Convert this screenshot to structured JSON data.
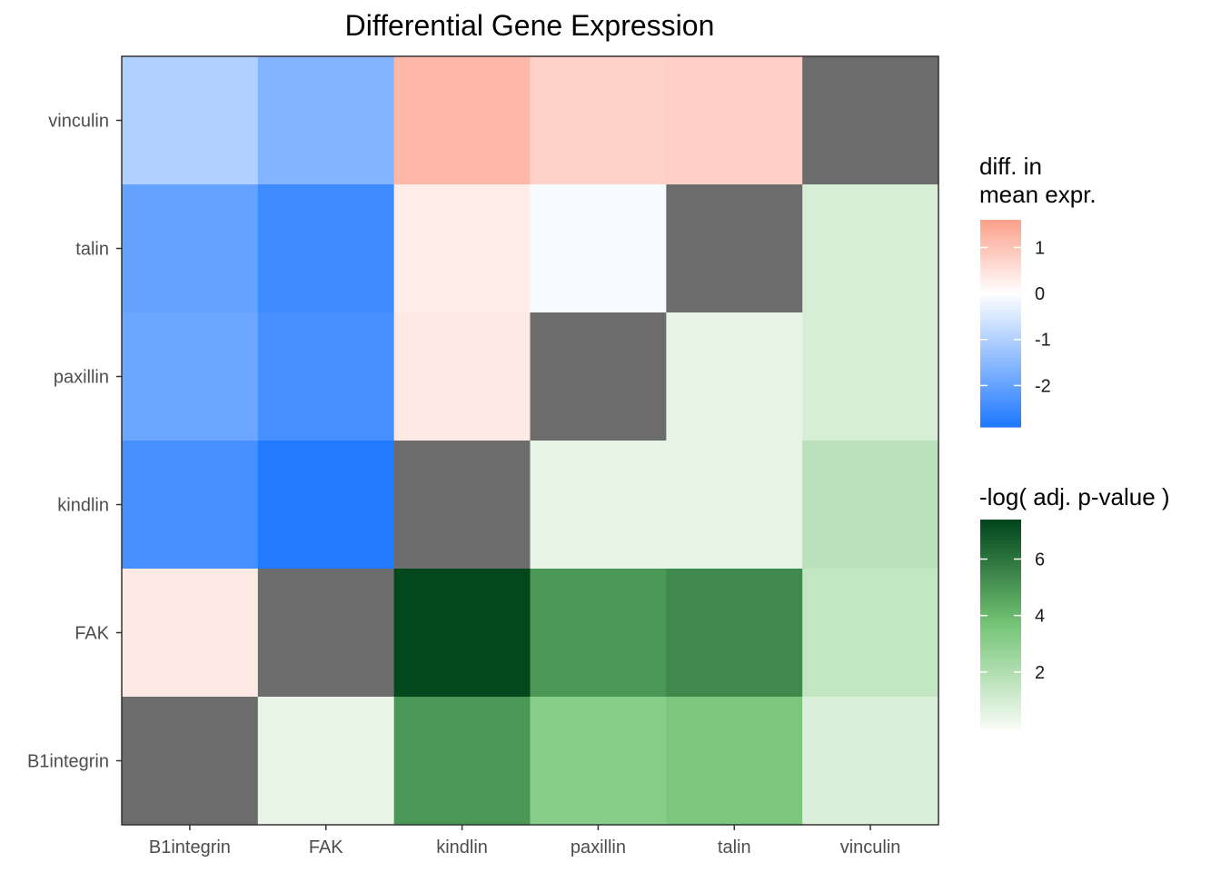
{
  "chart_data": {
    "type": "heatmap",
    "title": "Differential Gene Expression",
    "xlabel": "",
    "ylabel": "",
    "x_categories": [
      "B1integrin",
      "FAK",
      "kindlin",
      "paxillin",
      "talin",
      "vinculin"
    ],
    "y_categories": [
      "B1integrin",
      "FAK",
      "kindlin",
      "paxillin",
      "talin",
      "vinculin"
    ],
    "grid": false,
    "diagonal_color": "#6c6c6c",
    "cells": [
      {
        "x": "B1integrin",
        "y": "vinculin",
        "scale": "diff",
        "value": -1.0
      },
      {
        "x": "FAK",
        "y": "vinculin",
        "scale": "diff",
        "value": -1.6
      },
      {
        "x": "kindlin",
        "y": "vinculin",
        "scale": "diff",
        "value": 1.2
      },
      {
        "x": "paxillin",
        "y": "vinculin",
        "scale": "diff",
        "value": 0.75
      },
      {
        "x": "talin",
        "y": "vinculin",
        "scale": "diff",
        "value": 0.8
      },
      {
        "x": "vinculin",
        "y": "vinculin",
        "scale": "none",
        "value": null
      },
      {
        "x": "B1integrin",
        "y": "talin",
        "scale": "diff",
        "value": -2.0
      },
      {
        "x": "FAK",
        "y": "talin",
        "scale": "diff",
        "value": -2.5
      },
      {
        "x": "kindlin",
        "y": "talin",
        "scale": "diff",
        "value": 0.3
      },
      {
        "x": "paxillin",
        "y": "talin",
        "scale": "diff",
        "value": -0.1
      },
      {
        "x": "talin",
        "y": "talin",
        "scale": "none",
        "value": null
      },
      {
        "x": "vinculin",
        "y": "talin",
        "scale": "pval",
        "value": 0.9
      },
      {
        "x": "B1integrin",
        "y": "paxillin",
        "scale": "diff",
        "value": -1.9
      },
      {
        "x": "FAK",
        "y": "paxillin",
        "scale": "diff",
        "value": -2.4
      },
      {
        "x": "kindlin",
        "y": "paxillin",
        "scale": "diff",
        "value": 0.35
      },
      {
        "x": "paxillin",
        "y": "paxillin",
        "scale": "none",
        "value": null
      },
      {
        "x": "talin",
        "y": "paxillin",
        "scale": "pval",
        "value": 0.5
      },
      {
        "x": "vinculin",
        "y": "paxillin",
        "scale": "pval",
        "value": 0.9
      },
      {
        "x": "B1integrin",
        "y": "kindlin",
        "scale": "diff",
        "value": -2.4
      },
      {
        "x": "FAK",
        "y": "kindlin",
        "scale": "diff",
        "value": -2.85
      },
      {
        "x": "kindlin",
        "y": "kindlin",
        "scale": "none",
        "value": null
      },
      {
        "x": "paxillin",
        "y": "kindlin",
        "scale": "pval",
        "value": 0.5
      },
      {
        "x": "talin",
        "y": "kindlin",
        "scale": "pval",
        "value": 0.5
      },
      {
        "x": "vinculin",
        "y": "kindlin",
        "scale": "pval",
        "value": 1.7
      },
      {
        "x": "B1integrin",
        "y": "FAK",
        "scale": "diff",
        "value": 0.35
      },
      {
        "x": "FAK",
        "y": "FAK",
        "scale": "none",
        "value": null
      },
      {
        "x": "kindlin",
        "y": "FAK",
        "scale": "pval",
        "value": 7.3
      },
      {
        "x": "paxillin",
        "y": "FAK",
        "scale": "pval",
        "value": 5.0
      },
      {
        "x": "talin",
        "y": "FAK",
        "scale": "pval",
        "value": 5.4
      },
      {
        "x": "vinculin",
        "y": "FAK",
        "scale": "pval",
        "value": 1.5
      },
      {
        "x": "B1integrin",
        "y": "B1integrin",
        "scale": "none",
        "value": null
      },
      {
        "x": "FAK",
        "y": "B1integrin",
        "scale": "pval",
        "value": 0.4
      },
      {
        "x": "kindlin",
        "y": "B1integrin",
        "scale": "pval",
        "value": 5.0
      },
      {
        "x": "paxillin",
        "y": "B1integrin",
        "scale": "pval",
        "value": 3.1
      },
      {
        "x": "talin",
        "y": "B1integrin",
        "scale": "pval",
        "value": 3.5
      },
      {
        "x": "vinculin",
        "y": "B1integrin",
        "scale": "pval",
        "value": 0.8
      }
    ],
    "legends": [
      {
        "title_lines": [
          "diff. in",
          "mean expr."
        ],
        "scale": "diff",
        "range": [
          -2.9,
          1.6
        ],
        "ticks": [
          1,
          0,
          -1,
          -2
        ],
        "tick_labels": [
          "1",
          "0",
          "-1",
          "-2"
        ],
        "colors": {
          "low": "#1e78ff",
          "mid": "#ffffff",
          "high": "#fca08a"
        }
      },
      {
        "title_lines": [
          "-log( adj. p-value )"
        ],
        "scale": "pval",
        "range": [
          0,
          7.4
        ],
        "ticks": [
          6,
          4,
          2
        ],
        "tick_labels": [
          "6",
          "4",
          "2"
        ],
        "colors": {
          "low": "#f7fcf5",
          "mid": "#74c476",
          "high": "#00441b"
        }
      }
    ]
  }
}
